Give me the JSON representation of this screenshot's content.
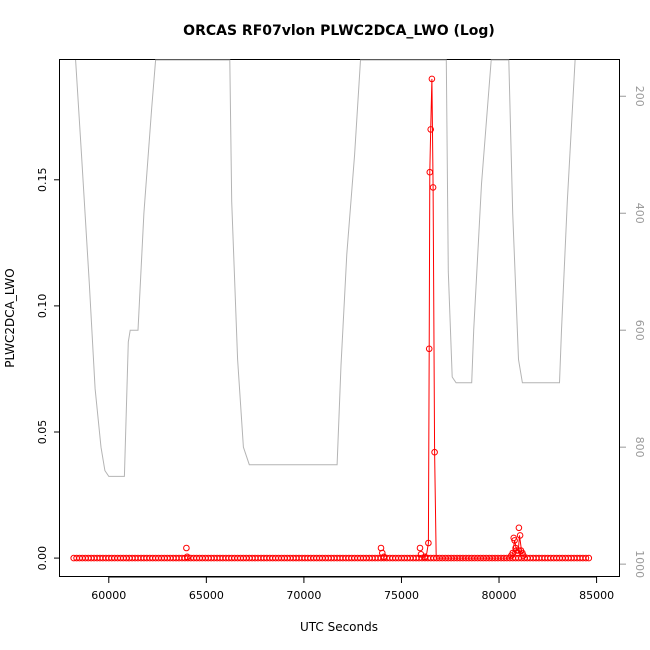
{
  "chart_data": {
    "type": "scatter",
    "title": "ORCAS RF07vlon PLWC2DCA_LWO (Log)",
    "xlabel": "UTC Seconds",
    "ylabel": "PLWC2DCA_LWO",
    "xlim": [
      57500,
      86200
    ],
    "ylim": [
      -0.0075,
      0.1975
    ],
    "x_ticks": [
      60000,
      65000,
      70000,
      75000,
      80000,
      85000
    ],
    "x_tick_labels": [
      "60000",
      "65000",
      "70000",
      "75000",
      "80000",
      "85000"
    ],
    "y_ticks": [
      0.0,
      0.05,
      0.1,
      0.15
    ],
    "y_tick_labels": [
      "0.00",
      "0.05",
      "0.10",
      "0.15"
    ],
    "right_axis": {
      "reversed": true,
      "ticks": [
        200,
        400,
        600,
        800,
        1000
      ],
      "tick_labels": [
        "200",
        "400",
        "600",
        "800",
        "1000"
      ],
      "ylim": [
        1022,
        138
      ]
    },
    "grid": false,
    "series": [
      {
        "kind": "points",
        "color": "#ff0000",
        "baseline": {
          "start": 58200,
          "end": 84600,
          "step": 150,
          "value": 0.0
        },
        "points": [
          [
            63980,
            0.004
          ],
          [
            64020,
            0.0005
          ],
          [
            73950,
            0.004
          ],
          [
            74020,
            0.002
          ],
          [
            74100,
            0.0005
          ],
          [
            75950,
            0.004
          ],
          [
            76000,
            0.0015
          ],
          [
            76200,
            0.0005
          ],
          [
            76380,
            0.006
          ],
          [
            76420,
            0.083
          ],
          [
            76450,
            0.153
          ],
          [
            76500,
            0.17
          ],
          [
            76560,
            0.19
          ],
          [
            76620,
            0.147
          ],
          [
            76700,
            0.042
          ],
          [
            80630,
            0.001
          ],
          [
            80700,
            0.002
          ],
          [
            80750,
            0.008
          ],
          [
            80800,
            0.007
          ],
          [
            80850,
            0.004
          ],
          [
            80900,
            0.003
          ],
          [
            80950,
            0.002
          ],
          [
            81000,
            0.003
          ],
          [
            81020,
            0.012
          ],
          [
            81080,
            0.009
          ],
          [
            81120,
            0.003
          ],
          [
            81200,
            0.002
          ],
          [
            81250,
            0.001
          ]
        ]
      },
      {
        "kind": "line",
        "color": "#ff0000",
        "points": [
          [
            76100,
            0.0
          ],
          [
            76300,
            0.002
          ],
          [
            76380,
            0.006
          ],
          [
            76420,
            0.083
          ],
          [
            76450,
            0.153
          ],
          [
            76500,
            0.17
          ],
          [
            76560,
            0.19
          ],
          [
            76620,
            0.147
          ],
          [
            76700,
            0.042
          ],
          [
            76780,
            0.0
          ],
          [
            76900,
            0.0
          ],
          [
            80600,
            0.0
          ],
          [
            80700,
            0.002
          ],
          [
            80800,
            0.007
          ],
          [
            80900,
            0.003
          ],
          [
            81000,
            0.004
          ],
          [
            81050,
            0.009
          ],
          [
            81150,
            0.003
          ],
          [
            81300,
            0.0
          ]
        ]
      },
      {
        "kind": "line",
        "axis": "right",
        "color": "#b4b4b4",
        "points": [
          [
            58300,
            138
          ],
          [
            58600,
            300
          ],
          [
            59000,
            520
          ],
          [
            59300,
            700
          ],
          [
            59600,
            800
          ],
          [
            59800,
            840
          ],
          [
            60000,
            850
          ],
          [
            60800,
            850
          ],
          [
            61000,
            620
          ],
          [
            61100,
            600
          ],
          [
            61500,
            600
          ],
          [
            61800,
            400
          ],
          [
            62200,
            220
          ],
          [
            62400,
            138
          ],
          [
            66200,
            138
          ],
          [
            66300,
            380
          ],
          [
            66600,
            650
          ],
          [
            66900,
            800
          ],
          [
            67200,
            830
          ],
          [
            71700,
            830
          ],
          [
            71900,
            660
          ],
          [
            72200,
            470
          ],
          [
            72600,
            300
          ],
          [
            72900,
            138
          ],
          [
            77300,
            138
          ],
          [
            77400,
            500
          ],
          [
            77600,
            680
          ],
          [
            77800,
            690
          ],
          [
            78600,
            690
          ],
          [
            78700,
            600
          ],
          [
            79100,
            350
          ],
          [
            79600,
            138
          ],
          [
            80500,
            138
          ],
          [
            80700,
            400
          ],
          [
            81000,
            650
          ],
          [
            81200,
            690
          ],
          [
            83100,
            690
          ],
          [
            83200,
            600
          ],
          [
            83500,
            380
          ],
          [
            83900,
            138
          ]
        ]
      }
    ]
  }
}
